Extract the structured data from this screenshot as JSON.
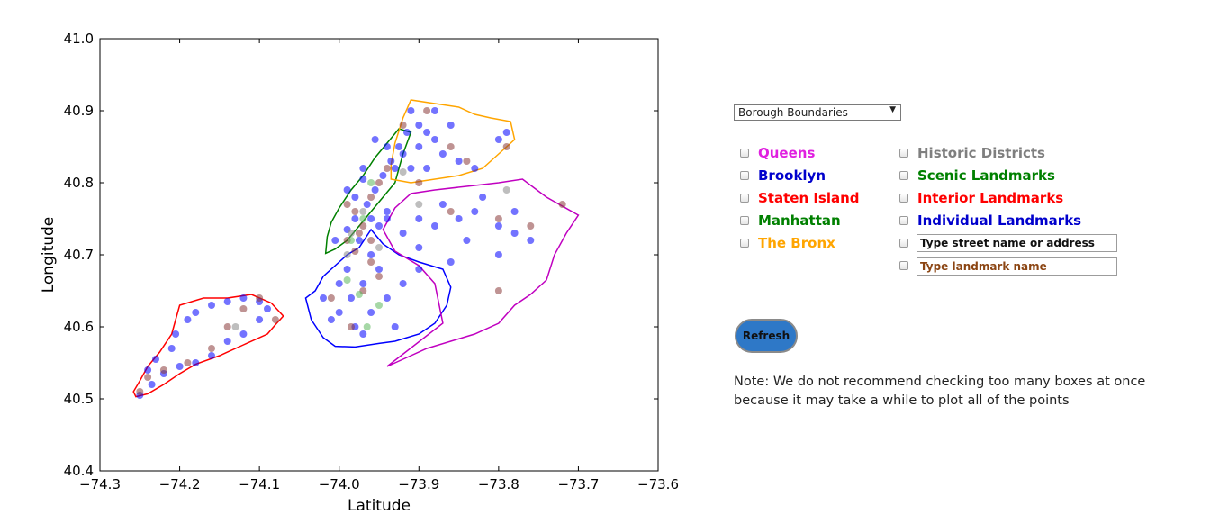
{
  "chart_data": {
    "type": "scatter",
    "title": "",
    "xlabel": "Latitude",
    "ylabel": "Longitude",
    "xlim": [
      -74.3,
      -73.6
    ],
    "ylim": [
      40.4,
      41.0
    ],
    "x_ticks": [
      "−74.3",
      "−74.2",
      "−74.1",
      "−74.0",
      "−73.9",
      "−73.8",
      "−73.7",
      "−73.6"
    ],
    "y_ticks": [
      "40.4",
      "40.5",
      "40.6",
      "40.7",
      "40.8",
      "40.9",
      "41.0"
    ],
    "grid": false,
    "boundaries": [
      {
        "name": "Staten Island",
        "color": "#ff0000",
        "points": [
          [
            -74.255,
            40.503
          ],
          [
            -74.24,
            40.507
          ],
          [
            -74.22,
            40.52
          ],
          [
            -74.2,
            40.535
          ],
          [
            -74.18,
            40.548
          ],
          [
            -74.15,
            40.56
          ],
          [
            -74.12,
            40.575
          ],
          [
            -74.09,
            40.59
          ],
          [
            -74.08,
            40.603
          ],
          [
            -74.07,
            40.615
          ],
          [
            -74.085,
            40.633
          ],
          [
            -74.11,
            40.645
          ],
          [
            -74.14,
            40.64
          ],
          [
            -74.17,
            40.64
          ],
          [
            -74.2,
            40.63
          ],
          [
            -74.205,
            40.61
          ],
          [
            -74.21,
            40.59
          ],
          [
            -74.225,
            40.565
          ],
          [
            -74.24,
            40.545
          ],
          [
            -74.25,
            40.525
          ],
          [
            -74.258,
            40.51
          ]
        ]
      },
      {
        "name": "Brooklyn",
        "color": "#0000ff",
        "points": [
          [
            -74.042,
            40.64
          ],
          [
            -74.035,
            40.61
          ],
          [
            -74.02,
            40.585
          ],
          [
            -74.005,
            40.573
          ],
          [
            -73.98,
            40.572
          ],
          [
            -73.95,
            40.577
          ],
          [
            -73.93,
            40.58
          ],
          [
            -73.9,
            40.59
          ],
          [
            -73.88,
            40.605
          ],
          [
            -73.865,
            40.63
          ],
          [
            -73.86,
            40.655
          ],
          [
            -73.87,
            40.68
          ],
          [
            -73.9,
            40.69
          ],
          [
            -73.925,
            40.7
          ],
          [
            -73.945,
            40.715
          ],
          [
            -73.96,
            40.735
          ],
          [
            -73.975,
            40.71
          ],
          [
            -73.99,
            40.7
          ],
          [
            -74.0,
            40.69
          ],
          [
            -74.02,
            40.67
          ],
          [
            -74.03,
            40.65
          ]
        ]
      },
      {
        "name": "Manhattan",
        "color": "#008000",
        "points": [
          [
            -74.017,
            40.702
          ],
          [
            -74.005,
            40.708
          ],
          [
            -73.99,
            40.72
          ],
          [
            -73.975,
            40.74
          ],
          [
            -73.96,
            40.76
          ],
          [
            -73.945,
            40.78
          ],
          [
            -73.93,
            40.8
          ],
          [
            -73.925,
            40.82
          ],
          [
            -73.92,
            40.84
          ],
          [
            -73.91,
            40.87
          ],
          [
            -73.925,
            40.875
          ],
          [
            -73.94,
            40.855
          ],
          [
            -73.955,
            40.835
          ],
          [
            -73.97,
            40.81
          ],
          [
            -73.985,
            40.79
          ],
          [
            -74.0,
            40.765
          ],
          [
            -74.01,
            40.745
          ],
          [
            -74.015,
            40.725
          ]
        ]
      },
      {
        "name": "The Bronx",
        "color": "#ffa500",
        "points": [
          [
            -73.935,
            40.805
          ],
          [
            -73.91,
            40.8
          ],
          [
            -73.88,
            40.805
          ],
          [
            -73.85,
            40.81
          ],
          [
            -73.82,
            40.82
          ],
          [
            -73.8,
            40.84
          ],
          [
            -73.78,
            40.86
          ],
          [
            -73.785,
            40.885
          ],
          [
            -73.81,
            40.89
          ],
          [
            -73.83,
            40.895
          ],
          [
            -73.85,
            40.905
          ],
          [
            -73.88,
            40.91
          ],
          [
            -73.91,
            40.915
          ],
          [
            -73.92,
            40.89
          ],
          [
            -73.93,
            40.855
          ],
          [
            -73.935,
            40.825
          ]
        ]
      },
      {
        "name": "Queens",
        "color": "#c000c0",
        "points": [
          [
            -73.945,
            40.735
          ],
          [
            -73.93,
            40.765
          ],
          [
            -73.91,
            40.785
          ],
          [
            -73.88,
            40.79
          ],
          [
            -73.84,
            40.795
          ],
          [
            -73.8,
            40.8
          ],
          [
            -73.77,
            40.805
          ],
          [
            -73.74,
            40.78
          ],
          [
            -73.7,
            40.755
          ],
          [
            -73.715,
            40.73
          ],
          [
            -73.73,
            40.7
          ],
          [
            -73.74,
            40.665
          ],
          [
            -73.76,
            40.645
          ],
          [
            -73.78,
            40.63
          ],
          [
            -73.8,
            40.605
          ],
          [
            -73.83,
            40.59
          ],
          [
            -73.86,
            40.58
          ],
          [
            -73.89,
            40.57
          ],
          [
            -73.92,
            40.555
          ],
          [
            -73.94,
            40.545
          ],
          [
            -73.87,
            40.605
          ],
          [
            -73.88,
            40.66
          ],
          [
            -73.9,
            40.685
          ],
          [
            -73.93,
            40.705
          ]
        ]
      }
    ],
    "series": [
      {
        "color": "#0000ff",
        "points": [
          [
            -74.25,
            40.505
          ],
          [
            -74.235,
            40.52
          ],
          [
            -74.22,
            40.535
          ],
          [
            -74.2,
            40.545
          ],
          [
            -74.18,
            40.55
          ],
          [
            -74.16,
            40.56
          ],
          [
            -74.14,
            40.58
          ],
          [
            -74.12,
            40.59
          ],
          [
            -74.1,
            40.61
          ],
          [
            -74.09,
            40.625
          ],
          [
            -74.1,
            40.635
          ],
          [
            -74.12,
            40.64
          ],
          [
            -74.14,
            40.635
          ],
          [
            -74.16,
            40.63
          ],
          [
            -74.18,
            40.62
          ],
          [
            -74.19,
            40.61
          ],
          [
            -74.205,
            40.59
          ],
          [
            -74.21,
            40.57
          ],
          [
            -74.23,
            40.555
          ],
          [
            -74.24,
            40.54
          ],
          [
            -74.02,
            40.64
          ],
          [
            -74.0,
            40.62
          ],
          [
            -73.98,
            40.6
          ],
          [
            -73.96,
            40.62
          ],
          [
            -73.94,
            40.64
          ],
          [
            -73.92,
            40.66
          ],
          [
            -73.9,
            40.68
          ],
          [
            -73.95,
            40.68
          ],
          [
            -73.97,
            40.66
          ],
          [
            -73.99,
            40.68
          ],
          [
            -74.0,
            40.66
          ],
          [
            -73.985,
            40.64
          ],
          [
            -73.97,
            40.59
          ],
          [
            -74.01,
            40.61
          ],
          [
            -73.93,
            40.6
          ],
          [
            -73.96,
            40.7
          ],
          [
            -73.975,
            40.72
          ],
          [
            -73.99,
            40.735
          ],
          [
            -73.98,
            40.75
          ],
          [
            -73.965,
            40.77
          ],
          [
            -73.955,
            40.79
          ],
          [
            -73.945,
            40.81
          ],
          [
            -73.935,
            40.83
          ],
          [
            -73.925,
            40.85
          ],
          [
            -73.915,
            40.87
          ],
          [
            -73.91,
            40.9
          ],
          [
            -73.9,
            40.88
          ],
          [
            -73.89,
            40.87
          ],
          [
            -73.88,
            40.86
          ],
          [
            -73.9,
            40.85
          ],
          [
            -73.87,
            40.84
          ],
          [
            -73.85,
            40.83
          ],
          [
            -73.83,
            40.82
          ],
          [
            -73.8,
            40.86
          ],
          [
            -73.79,
            40.87
          ],
          [
            -73.86,
            40.88
          ],
          [
            -73.88,
            40.9
          ],
          [
            -73.92,
            40.84
          ],
          [
            -73.93,
            40.82
          ],
          [
            -73.91,
            40.82
          ],
          [
            -73.89,
            40.82
          ],
          [
            -73.87,
            40.77
          ],
          [
            -73.85,
            40.75
          ],
          [
            -73.83,
            40.76
          ],
          [
            -73.8,
            40.74
          ],
          [
            -73.78,
            40.73
          ],
          [
            -73.76,
            40.72
          ],
          [
            -73.8,
            40.7
          ],
          [
            -73.84,
            40.72
          ],
          [
            -73.88,
            40.74
          ],
          [
            -73.9,
            40.75
          ],
          [
            -73.92,
            40.73
          ],
          [
            -73.94,
            40.75
          ],
          [
            -73.82,
            40.78
          ],
          [
            -73.78,
            40.76
          ],
          [
            -73.9,
            40.71
          ],
          [
            -73.86,
            40.69
          ],
          [
            -73.97,
            40.82
          ],
          [
            -73.99,
            40.79
          ],
          [
            -73.96,
            40.75
          ],
          [
            -73.94,
            40.76
          ],
          [
            -73.95,
            40.74
          ],
          [
            -74.005,
            40.72
          ],
          [
            -73.98,
            40.78
          ],
          [
            -73.97,
            40.805
          ],
          [
            -73.94,
            40.85
          ],
          [
            -73.955,
            40.86
          ]
        ]
      },
      {
        "color": "#8b3a3a",
        "points": [
          [
            -74.25,
            40.51
          ],
          [
            -74.24,
            40.53
          ],
          [
            -74.22,
            40.54
          ],
          [
            -74.19,
            40.55
          ],
          [
            -74.16,
            40.57
          ],
          [
            -74.14,
            40.6
          ],
          [
            -74.12,
            40.625
          ],
          [
            -74.1,
            40.64
          ],
          [
            -74.08,
            40.61
          ],
          [
            -73.98,
            40.76
          ],
          [
            -73.97,
            40.74
          ],
          [
            -73.99,
            40.72
          ],
          [
            -73.96,
            40.78
          ],
          [
            -73.95,
            40.8
          ],
          [
            -73.94,
            40.82
          ],
          [
            -73.92,
            40.88
          ],
          [
            -73.89,
            40.9
          ],
          [
            -73.86,
            40.85
          ],
          [
            -73.84,
            40.83
          ],
          [
            -73.79,
            40.85
          ],
          [
            -73.8,
            40.75
          ],
          [
            -73.76,
            40.74
          ],
          [
            -73.72,
            40.77
          ],
          [
            -73.86,
            40.76
          ],
          [
            -73.96,
            40.69
          ],
          [
            -73.95,
            40.67
          ],
          [
            -73.97,
            40.65
          ],
          [
            -73.985,
            40.6
          ],
          [
            -74.01,
            40.64
          ],
          [
            -73.8,
            40.65
          ],
          [
            -73.9,
            40.8
          ],
          [
            -73.98,
            40.705
          ],
          [
            -73.99,
            40.77
          ],
          [
            -73.975,
            40.73
          ],
          [
            -73.96,
            40.72
          ]
        ]
      },
      {
        "color": "#5cb85c",
        "points": [
          [
            -73.975,
            40.645
          ],
          [
            -73.965,
            40.6
          ],
          [
            -73.99,
            40.665
          ],
          [
            -73.95,
            40.63
          ],
          [
            -73.97,
            40.75
          ],
          [
            -73.96,
            40.8
          ],
          [
            -73.985,
            40.72
          ]
        ]
      },
      {
        "color": "#888888",
        "points": [
          [
            -74.13,
            40.6
          ],
          [
            -73.985,
            40.73
          ],
          [
            -73.97,
            40.76
          ],
          [
            -73.99,
            40.7
          ],
          [
            -73.9,
            40.77
          ],
          [
            -73.79,
            40.79
          ],
          [
            -73.95,
            40.71
          ],
          [
            -73.92,
            40.815
          ]
        ]
      }
    ]
  },
  "controls": {
    "dataset_select": "Borough Boundaries",
    "checkboxes_left": [
      {
        "label": "Queens",
        "color": "#e020e0"
      },
      {
        "label": "Brooklyn",
        "color": "#0000cc"
      },
      {
        "label": "Staten Island",
        "color": "#ff0000"
      },
      {
        "label": "Manhattan",
        "color": "#008000"
      },
      {
        "label": "The Bronx",
        "color": "#ffa500"
      }
    ],
    "checkboxes_right": [
      {
        "label": "Historic Districts",
        "color": "#7f7f7f"
      },
      {
        "label": "Scenic Landmarks",
        "color": "#008000"
      },
      {
        "label": "Interior Landmarks",
        "color": "#ff0000"
      },
      {
        "label": "Individual Landmarks",
        "color": "#0000cc"
      }
    ],
    "address_placeholder": "Type street name or address",
    "landmark_placeholder": "Type landmark name",
    "refresh_label": "Refresh",
    "note_line1": "Note: We do not recommend checking too many boxes at once",
    "note_line2": "because it may take a while to plot all of the points"
  }
}
